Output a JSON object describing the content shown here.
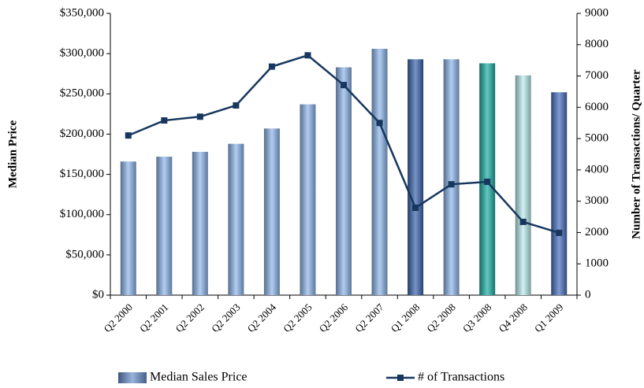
{
  "chart_data": {
    "type": "bar",
    "y_label": "Median Price",
    "y2_label": "Number of Transactions/ Quarter",
    "categories": [
      "Q2 2000",
      "Q2 2001",
      "Q2 2002",
      "Q2 2003",
      "Q2 2004",
      "Q2 2005",
      "Q2 2006",
      "Q2 2007",
      "Q1 2008",
      "Q2 2008",
      "Q3 2008",
      "Q4 2008",
      "Q1 2009"
    ],
    "series": [
      {
        "name": "Median Sales Price",
        "type": "bar",
        "colors": [
          "#8fb8ec",
          "#8fb8ec",
          "#8fb8ec",
          "#8fb8ec",
          "#8fb8ec",
          "#8fb8ec",
          "#8fb8ec",
          "#8fb8ec",
          "#3d66b0",
          "#8fb8ec",
          "#1fb0a8",
          "#bdeef0",
          "#4a72c0"
        ],
        "values": [
          166000,
          172000,
          178000,
          188000,
          207000,
          237000,
          283000,
          306000,
          293000,
          293000,
          288000,
          273000,
          252000
        ]
      },
      {
        "name": "# of Transactions",
        "type": "line",
        "axis": "y2",
        "color": "#17375e",
        "values": [
          5100,
          5580,
          5700,
          6060,
          7300,
          7660,
          6710,
          5500,
          2790,
          3540,
          3620,
          2340,
          1990
        ]
      }
    ],
    "ylim": [
      0,
      350000
    ],
    "yticks": [
      {
        "value": 0,
        "label": "$0"
      },
      {
        "value": 50000,
        "label": "$50,000"
      },
      {
        "value": 100000,
        "label": "$100,000"
      },
      {
        "value": 150000,
        "label": "$150,000"
      },
      {
        "value": 200000,
        "label": "$200,000"
      },
      {
        "value": 250000,
        "label": "$250,000"
      },
      {
        "value": 300000,
        "label": "$300,000"
      },
      {
        "value": 350000,
        "label": "$350,000"
      }
    ],
    "y2lim": [
      0,
      9000
    ],
    "y2ticks": [
      0,
      1000,
      2000,
      3000,
      4000,
      5000,
      6000,
      7000,
      8000,
      9000
    ],
    "legend": "bottom"
  }
}
